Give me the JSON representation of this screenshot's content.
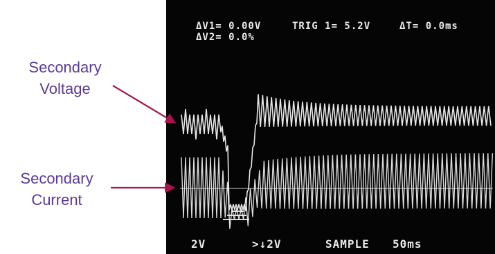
{
  "screen": {
    "readouts": {
      "dv1": "ΔV1= 0.00V",
      "dv2": "ΔV2= 0.0%",
      "trig": "TRIG 1= 5.2V",
      "dt": "ΔT= 0.0ms"
    },
    "status_bar": {
      "ch1_scale": "2V",
      "trigger": ">↓2V",
      "mode": "SAMPLE",
      "timebase": "50ms"
    }
  },
  "annotations": {
    "voltage_label": [
      "Secondary",
      "Voltage"
    ],
    "current_label": [
      "Secondary",
      "Current"
    ]
  },
  "colors": {
    "label": "#5a3a96",
    "arrow": "#a8134f",
    "screen_bg": "#050505",
    "trace": "#f2f2f2"
  },
  "chart_data": {
    "type": "line",
    "series": [
      {
        "name": "Secondary Voltage",
        "description": "oscillating trace, dips at event then recovers"
      },
      {
        "name": "Secondary Current",
        "description": "oscillating trace, dips at event then recovers"
      }
    ]
  }
}
